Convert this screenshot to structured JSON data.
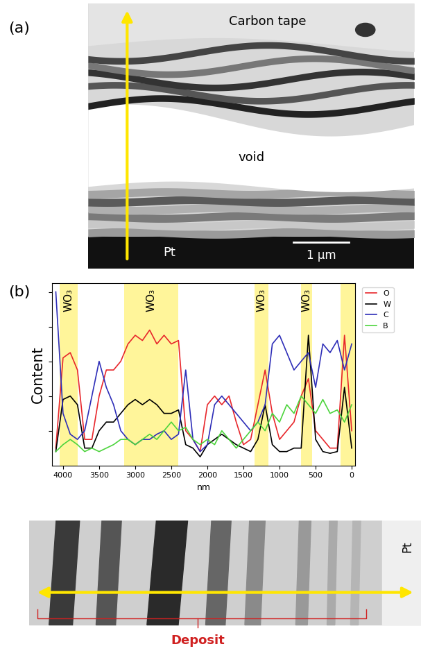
{
  "panel_labels": [
    "(a)",
    "(b)"
  ],
  "panel_a": {
    "top": "Carbon tape",
    "middle": "void",
    "bottom": "Pt",
    "scale_bar": "1 µm"
  },
  "panel_b_image": {
    "right": "Pt",
    "bracket": "Deposit"
  },
  "chart_data": {
    "type": "line",
    "xlabel": "nm",
    "ylabel": "Content",
    "x": [
      4100,
      4000,
      3900,
      3800,
      3700,
      3600,
      3500,
      3400,
      3300,
      3200,
      3100,
      3000,
      2900,
      2800,
      2700,
      2600,
      2500,
      2400,
      2300,
      2200,
      2100,
      2000,
      1900,
      1800,
      1700,
      1600,
      1500,
      1400,
      1300,
      1200,
      1100,
      1000,
      900,
      800,
      700,
      600,
      500,
      400,
      300,
      200,
      100,
      0
    ],
    "series": [
      {
        "name": "O",
        "color": "#e8262b",
        "values": [
          0.1,
          0.62,
          0.65,
          0.55,
          0.15,
          0.15,
          0.4,
          0.55,
          0.55,
          0.6,
          0.7,
          0.75,
          0.72,
          0.78,
          0.7,
          0.75,
          0.7,
          0.72,
          0.2,
          0.15,
          0.08,
          0.35,
          0.4,
          0.35,
          0.4,
          0.25,
          0.12,
          0.15,
          0.35,
          0.55,
          0.3,
          0.15,
          0.2,
          0.25,
          0.4,
          0.5,
          0.2,
          0.15,
          0.1,
          0.1,
          0.75,
          0.2
        ]
      },
      {
        "name": "W",
        "color": "#000000",
        "values": [
          0.08,
          0.38,
          0.4,
          0.35,
          0.1,
          0.1,
          0.2,
          0.25,
          0.25,
          0.3,
          0.35,
          0.38,
          0.35,
          0.38,
          0.35,
          0.3,
          0.3,
          0.32,
          0.12,
          0.1,
          0.05,
          0.12,
          0.15,
          0.18,
          0.15,
          0.12,
          0.1,
          0.08,
          0.15,
          0.35,
          0.12,
          0.08,
          0.08,
          0.1,
          0.1,
          0.75,
          0.15,
          0.08,
          0.07,
          0.08,
          0.45,
          0.1
        ]
      },
      {
        "name": "C",
        "color": "#2e2eb8",
        "values": [
          1.0,
          0.3,
          0.18,
          0.15,
          0.2,
          0.4,
          0.6,
          0.45,
          0.35,
          0.2,
          0.15,
          0.12,
          0.15,
          0.15,
          0.18,
          0.2,
          0.15,
          0.18,
          0.55,
          0.15,
          0.08,
          0.12,
          0.35,
          0.4,
          0.35,
          0.3,
          0.25,
          0.2,
          0.25,
          0.35,
          0.7,
          0.75,
          0.65,
          0.55,
          0.6,
          0.65,
          0.45,
          0.7,
          0.65,
          0.72,
          0.55,
          0.7
        ]
      },
      {
        "name": "B",
        "color": "#4cd43c",
        "values": [
          0.08,
          0.12,
          0.15,
          0.12,
          0.08,
          0.1,
          0.08,
          0.1,
          0.12,
          0.15,
          0.15,
          0.12,
          0.15,
          0.18,
          0.15,
          0.2,
          0.25,
          0.2,
          0.22,
          0.15,
          0.12,
          0.15,
          0.12,
          0.2,
          0.15,
          0.1,
          0.15,
          0.2,
          0.25,
          0.2,
          0.3,
          0.25,
          0.35,
          0.3,
          0.4,
          0.35,
          0.3,
          0.38,
          0.3,
          0.32,
          0.25,
          0.35
        ]
      }
    ],
    "bands": [
      {
        "start": 4050,
        "end": 3800,
        "label": "WO₃"
      },
      {
        "start": 3150,
        "end": 2400,
        "label": "WO₃"
      },
      {
        "start": 1350,
        "end": 1150,
        "label": "WO₃"
      },
      {
        "start": 700,
        "end": 550,
        "label": "WO₃"
      },
      {
        "start": 150,
        "end": -50
      }
    ],
    "band_color": "#fff59a",
    "xlim": [
      4150,
      -50
    ],
    "xticks": [
      4000,
      3500,
      3000,
      2500,
      2000,
      1500,
      1000,
      500,
      0
    ],
    "ylim": [
      0,
      1.05
    ],
    "yticks": [
      0.2,
      0.4,
      0.6,
      0.8,
      1.0
    ],
    "tick_labels": "x",
    "legend": "upper left"
  }
}
